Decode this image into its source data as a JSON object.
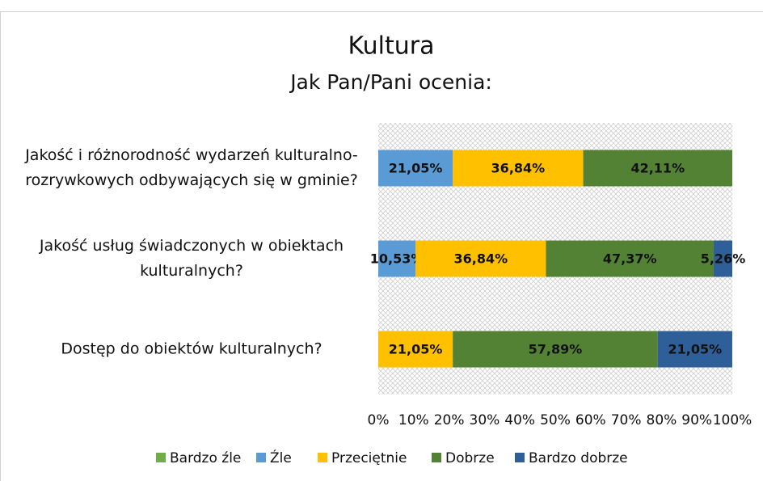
{
  "chart_data": {
    "type": "stacked_bar_horizontal",
    "title": "Kultura",
    "subtitle": "Jak Pan/Pani ocenia:",
    "categories": [
      "Jakość i różnorodność wydarzeń kulturalno-rozrywkowych odbywających się w gminie?",
      "Jakość usług świadczonych w obiektach kulturalnych?",
      "Dostęp do obiektów kulturalnych?"
    ],
    "series": [
      {
        "name": "Bardzo źle",
        "color": "#70ad47",
        "values": [
          0,
          0,
          0
        ],
        "value_labels": [
          null,
          null,
          null
        ]
      },
      {
        "name": "Źle",
        "color": "#5b9bd5",
        "values": [
          21.05,
          10.53,
          0
        ],
        "value_labels": [
          "21,05%",
          "10,53%",
          null
        ]
      },
      {
        "name": "Przeciętnie",
        "color": "#ffc000",
        "values": [
          36.84,
          36.84,
          21.05
        ],
        "value_labels": [
          "36,84%",
          "36,84%",
          "21,05%"
        ]
      },
      {
        "name": "Dobrze",
        "color": "#548235",
        "values": [
          42.11,
          47.37,
          57.89
        ],
        "value_labels": [
          "42,11%",
          "47,37%",
          "57,89%"
        ]
      },
      {
        "name": "Bardzo dobrze",
        "color": "#2e5f99",
        "values": [
          0,
          5.26,
          21.05
        ],
        "value_labels": [
          null,
          "5,26%",
          "21,05%"
        ]
      }
    ],
    "xlim": [
      0,
      100
    ],
    "xticks": [
      {
        "value": 0,
        "label": "0%"
      },
      {
        "value": 10,
        "label": "10%"
      },
      {
        "value": 20,
        "label": "20%"
      },
      {
        "value": 30,
        "label": "30%"
      },
      {
        "value": 40,
        "label": "40%"
      },
      {
        "value": 50,
        "label": "50%"
      },
      {
        "value": 60,
        "label": "60%"
      },
      {
        "value": 70,
        "label": "70%"
      },
      {
        "value": 80,
        "label": "80%"
      },
      {
        "value": 90,
        "label": "90%"
      },
      {
        "value": 100,
        "label": "100%"
      }
    ],
    "legend": "bottom"
  }
}
